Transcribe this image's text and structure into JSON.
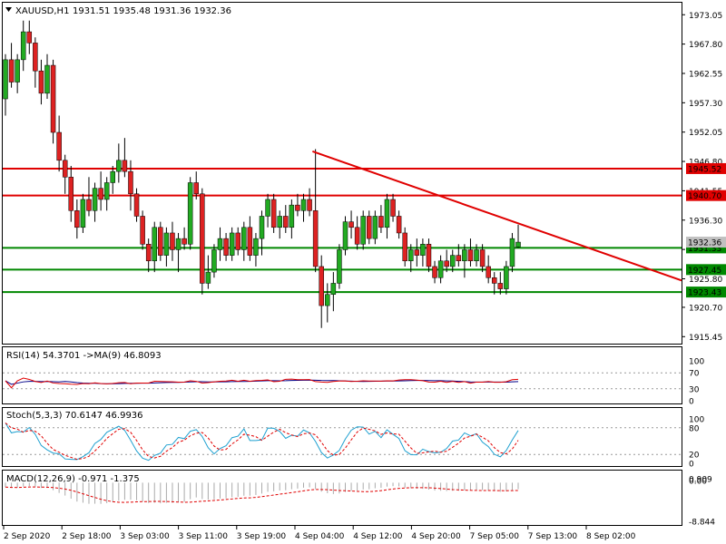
{
  "header": {
    "symbol": "XAUUSD,H1",
    "ohlc": "1931.51 1935.48 1931.36 1932.36"
  },
  "price_axis": {
    "ticks": [
      "1973.05",
      "1967.80",
      "1962.55",
      "1957.30",
      "1952.05",
      "1946.80",
      "1941.55",
      "1936.30",
      "1931.05",
      "1925.80",
      "1920.70",
      "1915.45"
    ],
    "current": "1932.36",
    "levels": [
      {
        "label": "1945.52",
        "color": "#e00000"
      },
      {
        "label": "1940.70",
        "color": "#e00000"
      },
      {
        "label": "1931.33",
        "color": "#008800"
      },
      {
        "label": "1927.45",
        "color": "#008800"
      },
      {
        "label": "1923.43",
        "color": "#008800"
      }
    ]
  },
  "time_axis": {
    "labels": [
      "2 Sep 2020",
      "2 Sep 18:00",
      "3 Sep 03:00",
      "3 Sep 11:00",
      "3 Sep 19:00",
      "4 Sep 04:00",
      "4 Sep 12:00",
      "4 Sep 20:00",
      "7 Sep 05:00",
      "7 Sep 13:00",
      "8 Sep 02:00"
    ]
  },
  "rsi": {
    "title": "RSI(14) 54.3701  ->MA(9) 46.8093",
    "ticks": [
      "100",
      "70",
      "30",
      "0"
    ]
  },
  "stoch": {
    "title": "Stoch(5,3,3) 70.6147 46.9936",
    "ticks": [
      "100",
      "80",
      "20",
      "0"
    ]
  },
  "macd": {
    "title": "MACD(12,26,9) -0.971 -1.375",
    "ticks": [
      "0.909",
      "0.00",
      "-8.844"
    ]
  },
  "colors": {
    "bull": "#22aa22",
    "bear": "#dd2222",
    "resistance": "#e00000",
    "support": "#008800",
    "trendline": "#e00000",
    "rsi_line": "#e00000",
    "rsi_ma": "#000088",
    "stoch_main": "#1ea0d0",
    "stoch_signal": "#e00000",
    "macd_hist": "#aaaaaa",
    "macd_signal": "#e00000"
  },
  "chart_data": {
    "type": "candlestick",
    "series": "XAUUSD H1",
    "candles": [
      [
        1958,
        1966,
        1955,
        1965
      ],
      [
        1965,
        1968,
        1960,
        1961
      ],
      [
        1961,
        1966,
        1959,
        1965
      ],
      [
        1965,
        1972,
        1963,
        1970
      ],
      [
        1970,
        1972,
        1966,
        1968
      ],
      [
        1968,
        1969,
        1960,
        1963
      ],
      [
        1963,
        1965,
        1957,
        1959
      ],
      [
        1959,
        1966,
        1958,
        1964
      ],
      [
        1964,
        1965,
        1950,
        1952
      ],
      [
        1952,
        1955,
        1945,
        1947
      ],
      [
        1947,
        1948,
        1941,
        1944
      ],
      [
        1944,
        1946,
        1936,
        1938
      ],
      [
        1938,
        1940,
        1933,
        1935
      ],
      [
        1935,
        1941,
        1934,
        1940
      ],
      [
        1940,
        1944,
        1937,
        1938
      ],
      [
        1938,
        1943,
        1936,
        1942
      ],
      [
        1942,
        1945,
        1938,
        1940
      ],
      [
        1940,
        1944,
        1938,
        1943
      ],
      [
        1943,
        1946,
        1941,
        1945
      ],
      [
        1945,
        1950,
        1943,
        1947
      ],
      [
        1947,
        1951,
        1944,
        1945
      ],
      [
        1945,
        1947,
        1938,
        1941
      ],
      [
        1941,
        1942,
        1936,
        1937
      ],
      [
        1937,
        1938,
        1931,
        1932
      ],
      [
        1932,
        1933,
        1927,
        1929
      ],
      [
        1929,
        1936,
        1927,
        1935
      ],
      [
        1935,
        1936,
        1929,
        1930
      ],
      [
        1930,
        1935,
        1928,
        1934
      ],
      [
        1934,
        1936,
        1929,
        1931
      ],
      [
        1931,
        1934,
        1927,
        1933
      ],
      [
        1933,
        1935,
        1931,
        1932
      ],
      [
        1932,
        1944,
        1931,
        1943
      ],
      [
        1943,
        1945,
        1940,
        1941
      ],
      [
        1941,
        1942,
        1923,
        1925
      ],
      [
        1925,
        1930,
        1924,
        1927
      ],
      [
        1927,
        1932,
        1926,
        1931
      ],
      [
        1931,
        1935,
        1929,
        1933
      ],
      [
        1933,
        1934,
        1929,
        1930
      ],
      [
        1930,
        1935,
        1929,
        1934
      ],
      [
        1934,
        1935,
        1930,
        1931
      ],
      [
        1931,
        1936,
        1929,
        1935
      ],
      [
        1935,
        1937,
        1929,
        1930
      ],
      [
        1930,
        1934,
        1928,
        1933
      ],
      [
        1933,
        1938,
        1930,
        1937
      ],
      [
        1937,
        1941,
        1935,
        1940
      ],
      [
        1940,
        1941,
        1934,
        1935
      ],
      [
        1935,
        1938,
        1933,
        1937
      ],
      [
        1937,
        1939,
        1934,
        1935
      ],
      [
        1935,
        1940,
        1933,
        1939
      ],
      [
        1939,
        1941,
        1937,
        1938
      ],
      [
        1938,
        1941,
        1936,
        1940
      ],
      [
        1940,
        1942,
        1937,
        1938
      ],
      [
        1938,
        1949,
        1927,
        1928
      ],
      [
        1928,
        1930,
        1917,
        1921
      ],
      [
        1921,
        1925,
        1918,
        1923
      ],
      [
        1923,
        1927,
        1920,
        1925
      ],
      [
        1925,
        1932,
        1924,
        1931
      ],
      [
        1931,
        1937,
        1930,
        1936
      ],
      [
        1936,
        1938,
        1933,
        1935
      ],
      [
        1935,
        1937,
        1931,
        1932
      ],
      [
        1932,
        1938,
        1931,
        1937
      ],
      [
        1937,
        1938,
        1932,
        1933
      ],
      [
        1933,
        1938,
        1932,
        1937
      ],
      [
        1937,
        1939,
        1934,
        1935
      ],
      [
        1935,
        1941,
        1933,
        1940
      ],
      [
        1940,
        1941,
        1936,
        1937
      ],
      [
        1937,
        1938,
        1933,
        1934
      ],
      [
        1934,
        1935,
        1928,
        1929
      ],
      [
        1929,
        1932,
        1927,
        1931
      ],
      [
        1931,
        1933,
        1928,
        1930
      ],
      [
        1930,
        1933,
        1928,
        1932
      ],
      [
        1932,
        1933,
        1927,
        1928
      ],
      [
        1928,
        1929,
        1925,
        1926
      ],
      [
        1926,
        1930,
        1925,
        1929
      ],
      [
        1929,
        1931,
        1927,
        1928
      ],
      [
        1928,
        1931,
        1927,
        1930
      ],
      [
        1930,
        1932,
        1928,
        1929
      ],
      [
        1929,
        1932,
        1926,
        1931
      ],
      [
        1931,
        1933,
        1928,
        1929
      ],
      [
        1929,
        1932,
        1928,
        1931
      ],
      [
        1931,
        1932,
        1927,
        1928
      ],
      [
        1928,
        1930,
        1925,
        1926
      ],
      [
        1926,
        1927,
        1923,
        1925
      ],
      [
        1925,
        1927,
        1923,
        1924
      ],
      [
        1924,
        1929,
        1923,
        1928
      ],
      [
        1928,
        1934,
        1927,
        1933
      ],
      [
        1931.51,
        1935.48,
        1931.36,
        1932.36
      ]
    ],
    "hlines": [
      1945.52,
      1940.7,
      1931.33,
      1927.45,
      1923.43
    ],
    "trendline": {
      "from_index": 51.5,
      "from_price": 1948.6,
      "to_index": 95,
      "to_price": 1925.5
    },
    "ylim": [
      1914.2,
      1975.2
    ],
    "rsi_ylim": [
      0,
      100
    ],
    "rsi_levels": [
      70,
      30
    ],
    "stoch_ylim": [
      0,
      100
    ],
    "stoch_levels": [
      80,
      20
    ],
    "macd_ylim": [
      -8.844,
      0.909
    ]
  }
}
